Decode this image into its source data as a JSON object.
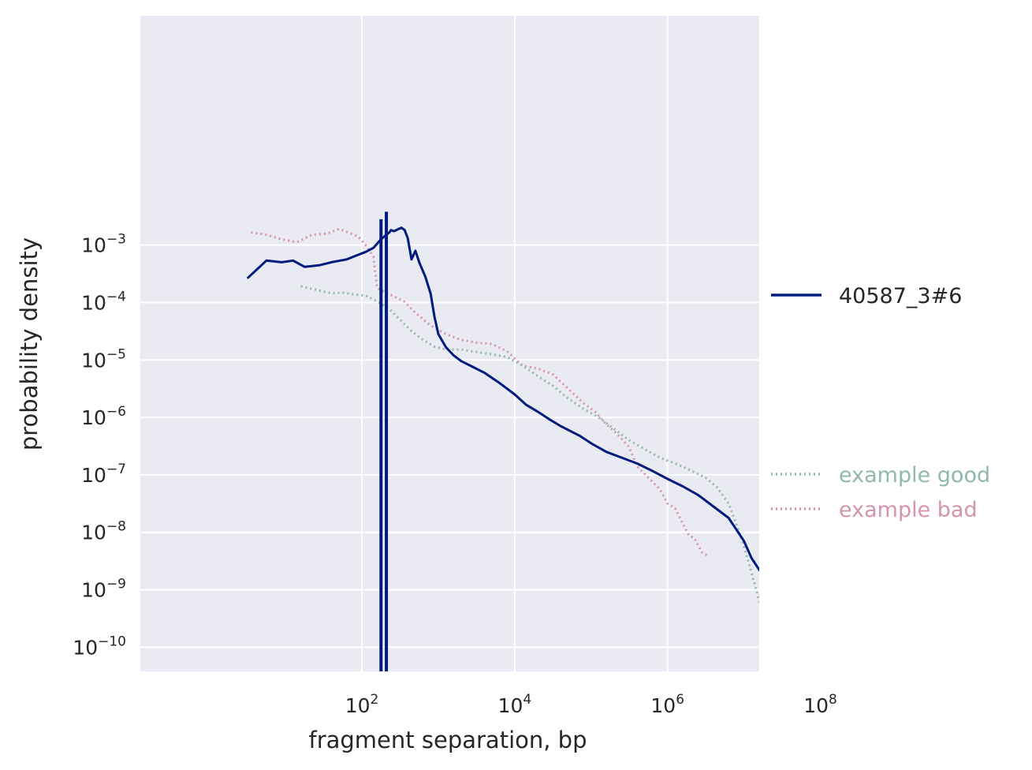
{
  "chart_data": {
    "type": "line",
    "xlabel": "fragment separation, bp",
    "ylabel": "probability density",
    "xscale": "log",
    "yscale": "log",
    "xlim_log10": [
      -0.9,
      7.2
    ],
    "ylim_log10": [
      -10.42,
      0.99
    ],
    "grid": true,
    "x_ticks": [
      {
        "base": "10",
        "exp": "2",
        "log10": 2
      },
      {
        "base": "10",
        "exp": "4",
        "log10": 4
      },
      {
        "base": "10",
        "exp": "6",
        "log10": 6
      },
      {
        "base": "10",
        "exp": "8",
        "log10": 8
      }
    ],
    "y_ticks": [
      {
        "base": "10",
        "exp": "−3",
        "log10": -3
      },
      {
        "base": "10",
        "exp": "−4",
        "log10": -4
      },
      {
        "base": "10",
        "exp": "−5",
        "log10": -5
      },
      {
        "base": "10",
        "exp": "−6",
        "log10": -6
      },
      {
        "base": "10",
        "exp": "−7",
        "log10": -7
      },
      {
        "base": "10",
        "exp": "−8",
        "log10": -8
      },
      {
        "base": "10",
        "exp": "−9",
        "log10": -9
      },
      {
        "base": "10",
        "exp": "−10",
        "log10": -10
      }
    ],
    "legend_placement": "right",
    "series": [
      {
        "name": "40587_3#6",
        "color": "#001c7f",
        "style": "solid",
        "points_log10": [
          [
            0.5,
            -3.58
          ],
          [
            0.75,
            -3.27
          ],
          [
            0.95,
            -3.3
          ],
          [
            1.1,
            -3.27
          ],
          [
            1.25,
            -3.38
          ],
          [
            1.45,
            -3.35
          ],
          [
            1.6,
            -3.3
          ],
          [
            1.8,
            -3.25
          ],
          [
            1.95,
            -3.17
          ],
          [
            2.05,
            -3.12
          ],
          [
            2.15,
            -3.05
          ],
          [
            2.25,
            -2.9
          ],
          [
            2.32,
            -2.82
          ],
          [
            2.36,
            -2.78
          ],
          [
            2.38,
            -2.74
          ],
          [
            2.42,
            -2.76
          ],
          [
            2.48,
            -2.72
          ],
          [
            2.52,
            -2.7
          ],
          [
            2.56,
            -2.74
          ],
          [
            2.6,
            -2.88
          ],
          [
            2.65,
            -3.25
          ],
          [
            2.7,
            -3.1
          ],
          [
            2.75,
            -3.3
          ],
          [
            2.83,
            -3.55
          ],
          [
            2.9,
            -3.85
          ],
          [
            2.95,
            -4.25
          ],
          [
            3.0,
            -4.55
          ],
          [
            3.1,
            -4.78
          ],
          [
            3.2,
            -4.92
          ],
          [
            3.3,
            -5.02
          ],
          [
            3.45,
            -5.12
          ],
          [
            3.6,
            -5.22
          ],
          [
            3.8,
            -5.4
          ],
          [
            4.0,
            -5.6
          ],
          [
            4.15,
            -5.78
          ],
          [
            4.3,
            -5.9
          ],
          [
            4.45,
            -6.03
          ],
          [
            4.6,
            -6.15
          ],
          [
            4.85,
            -6.32
          ],
          [
            5.0,
            -6.45
          ],
          [
            5.2,
            -6.6
          ],
          [
            5.4,
            -6.7
          ],
          [
            5.6,
            -6.8
          ],
          [
            5.8,
            -6.93
          ],
          [
            6.0,
            -7.07
          ],
          [
            6.2,
            -7.2
          ],
          [
            6.4,
            -7.35
          ],
          [
            6.6,
            -7.55
          ],
          [
            6.8,
            -7.75
          ],
          [
            7.0,
            -8.15
          ],
          [
            7.1,
            -8.45
          ],
          [
            7.25,
            -8.75
          ],
          [
            7.4,
            -9.0
          ],
          [
            7.55,
            -9.2
          ],
          [
            7.7,
            -9.8
          ],
          [
            7.82,
            -10.03
          ]
        ],
        "spikes_log10": [
          {
            "x": 2.25,
            "top": -2.55
          },
          {
            "x": 2.32,
            "top": -2.42
          }
        ]
      },
      {
        "name": "example good",
        "color": "#8fb8ae",
        "style": "dotted",
        "points_log10": [
          [
            1.2,
            -3.72
          ],
          [
            1.4,
            -3.78
          ],
          [
            1.6,
            -3.84
          ],
          [
            1.75,
            -3.83
          ],
          [
            1.9,
            -3.86
          ],
          [
            2.05,
            -3.88
          ],
          [
            2.2,
            -3.98
          ],
          [
            2.35,
            -4.1
          ],
          [
            2.5,
            -4.3
          ],
          [
            2.65,
            -4.5
          ],
          [
            2.8,
            -4.65
          ],
          [
            2.95,
            -4.77
          ],
          [
            3.1,
            -4.82
          ],
          [
            3.3,
            -4.82
          ],
          [
            3.5,
            -4.86
          ],
          [
            3.7,
            -4.9
          ],
          [
            3.9,
            -4.95
          ],
          [
            4.1,
            -5.1
          ],
          [
            4.3,
            -5.28
          ],
          [
            4.5,
            -5.45
          ],
          [
            4.7,
            -5.67
          ],
          [
            4.9,
            -5.85
          ],
          [
            5.1,
            -6.0
          ],
          [
            5.3,
            -6.2
          ],
          [
            5.5,
            -6.4
          ],
          [
            5.7,
            -6.55
          ],
          [
            5.9,
            -6.7
          ],
          [
            6.1,
            -6.8
          ],
          [
            6.3,
            -6.92
          ],
          [
            6.5,
            -7.05
          ],
          [
            6.65,
            -7.22
          ],
          [
            6.8,
            -7.5
          ],
          [
            6.9,
            -7.85
          ],
          [
            7.0,
            -8.25
          ],
          [
            7.1,
            -8.7
          ],
          [
            7.2,
            -9.2
          ],
          [
            7.3,
            -9.6
          ],
          [
            7.38,
            -9.78
          ]
        ]
      },
      {
        "name": "example bad",
        "color": "#d494b0",
        "style": "dotted",
        "points_log10": [
          [
            0.55,
            -2.78
          ],
          [
            0.75,
            -2.82
          ],
          [
            0.95,
            -2.9
          ],
          [
            1.15,
            -2.95
          ],
          [
            1.35,
            -2.82
          ],
          [
            1.55,
            -2.8
          ],
          [
            1.7,
            -2.72
          ],
          [
            1.82,
            -2.78
          ],
          [
            1.95,
            -2.85
          ],
          [
            2.05,
            -3.0
          ],
          [
            2.15,
            -3.2
          ],
          [
            2.2,
            -3.75
          ],
          [
            2.35,
            -3.85
          ],
          [
            2.55,
            -3.98
          ],
          [
            2.7,
            -4.18
          ],
          [
            2.9,
            -4.4
          ],
          [
            3.1,
            -4.55
          ],
          [
            3.3,
            -4.65
          ],
          [
            3.5,
            -4.7
          ],
          [
            3.7,
            -4.72
          ],
          [
            3.9,
            -4.85
          ],
          [
            4.1,
            -5.1
          ],
          [
            4.3,
            -5.15
          ],
          [
            4.5,
            -5.25
          ],
          [
            4.7,
            -5.5
          ],
          [
            4.9,
            -5.75
          ],
          [
            5.05,
            -5.9
          ],
          [
            5.2,
            -6.12
          ],
          [
            5.35,
            -6.3
          ],
          [
            5.5,
            -6.52
          ],
          [
            5.6,
            -6.85
          ],
          [
            5.75,
            -7.05
          ],
          [
            5.9,
            -7.25
          ],
          [
            6.0,
            -7.5
          ],
          [
            6.1,
            -7.58
          ],
          [
            6.2,
            -7.85
          ],
          [
            6.28,
            -8.05
          ],
          [
            6.35,
            -8.1
          ],
          [
            6.45,
            -8.35
          ],
          [
            6.52,
            -8.4
          ]
        ]
      }
    ]
  }
}
